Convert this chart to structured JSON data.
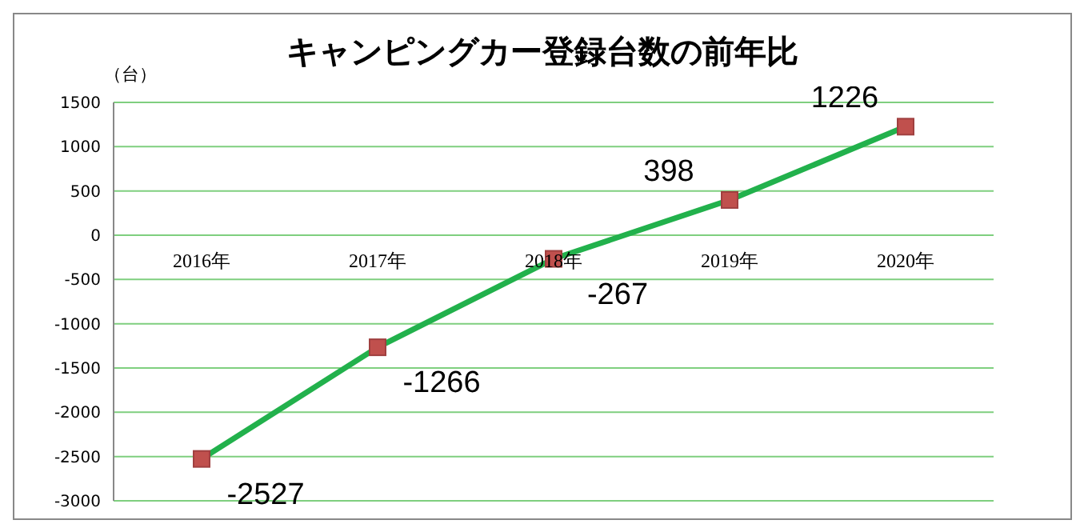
{
  "chart_data": {
    "type": "line",
    "title": "キャンピングカー登録台数の前年比",
    "ylabel": "（台）",
    "categories": [
      "2016年",
      "2017年",
      "2018年",
      "2019年",
      "2020年"
    ],
    "series": [
      {
        "color": "#22b14c",
        "values": [
          -2527,
          -1266,
          -267,
          398,
          1226
        ]
      }
    ],
    "ylim": [
      -3000,
      1500
    ],
    "yticks": [
      -3000,
      -2500,
      -2000,
      -1500,
      -1000,
      -500,
      0,
      500,
      1000,
      1500
    ],
    "grid": "y",
    "marker": "square",
    "line_style": "solid",
    "data_labels": true,
    "legend": false
  }
}
